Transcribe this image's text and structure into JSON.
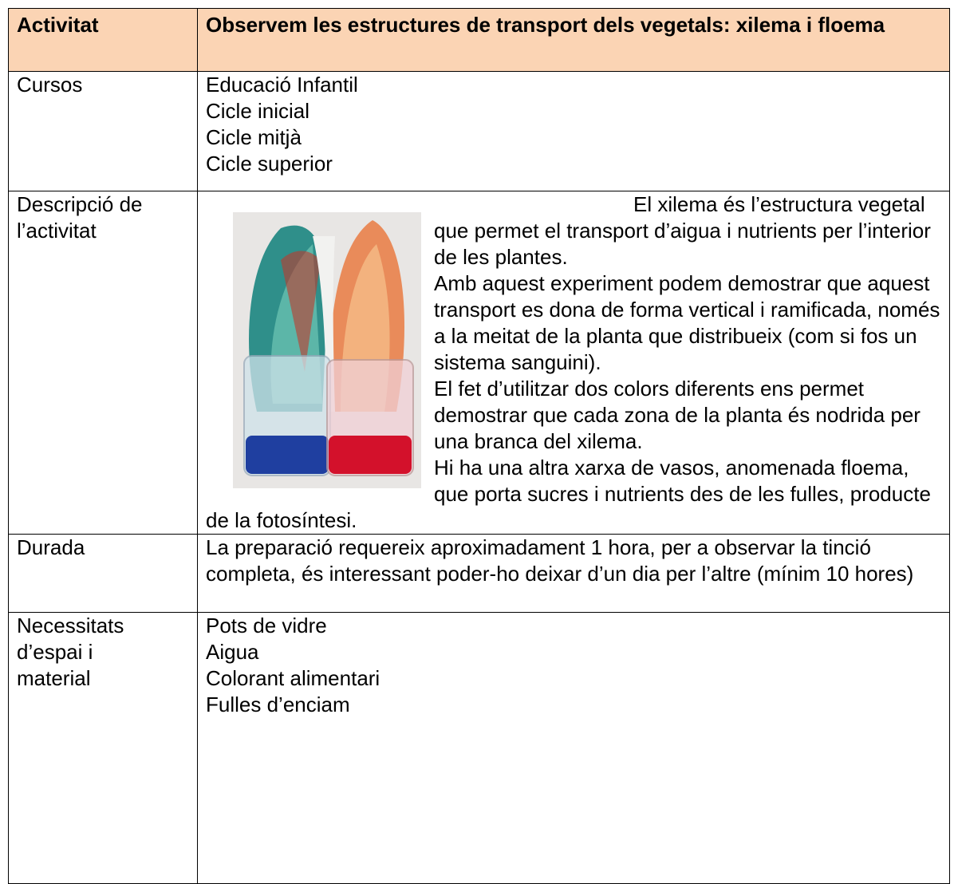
{
  "table": {
    "header": [
      "Activitat",
      "Observem les estructures de transport dels vegetals: xilema i floema"
    ],
    "rows": [
      {
        "label": "Cursos",
        "items": [
          "Educació Infantil",
          "Cicle inicial",
          "Cicle mitjà",
          "Cicle superior"
        ]
      },
      {
        "label": "Descripció de l’activitat",
        "items": [
          "El xilema és l’estructura vegetal que permet el transport d’aigua i nutrients per l’interior de les plantes.",
          "Amb aquest experiment podem demostrar que aquest transport es dona de forma vertical i ramificada, només a la meitat de la planta que distribueix (com si fos un sistema sanguini).",
          "El fet d’utilitzar dos colors diferents ens permet demostrar que cada zona de la planta és nodrida per una branca del xilema.",
          "Hi ha una altra xarxa de vasos, anomenada floema, que porta sucres i nutrients des de  les fulles, producte de la fotosíntesi."
        ]
      },
      {
        "label": "Durada",
        "items": [
          "La preparació requereix aproximadament 1 hora, per a observar la tinció completa, és interessant poder-ho deixar d’un dia per l’altre (mínim 10 hores)"
        ]
      },
      {
        "label": "Necessitats d’espai i material",
        "items": [
          "Pots de vidre",
          "Aigua",
          "Colorant alimentari",
          "Fulles d’enciam"
        ]
      }
    ]
  }
}
